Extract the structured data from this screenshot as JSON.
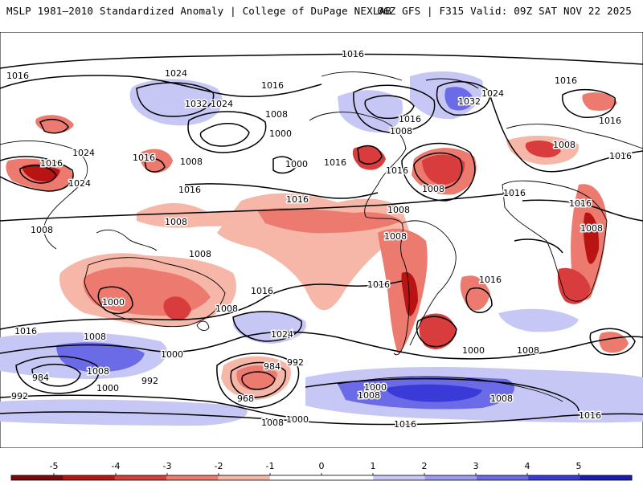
{
  "header": {
    "title_left": "MSLP 1981–2010 Standardized Anomaly | College of DuPage NEXLAB",
    "title_right": "06Z GFS | F315 Valid: 09Z SAT NOV 22 2025"
  },
  "colorbar": {
    "ticks": [
      "-5",
      "-4",
      "-3",
      "-2",
      "-1",
      "0",
      "1",
      "2",
      "3",
      "4",
      "5"
    ],
    "colors": [
      "#7a0a0a",
      "#b81414",
      "#d83c3c",
      "#ec7a6e",
      "#f6b6a8",
      "#ffffff",
      "#ffffff",
      "#c7c7f5",
      "#9a9af0",
      "#6b6be8",
      "#3a3ad8",
      "#1a1ab8"
    ]
  },
  "map": {
    "contour_labels": [
      {
        "text": "1016"
      },
      {
        "text": "1024"
      },
      {
        "text": "1032"
      },
      {
        "text": "1024"
      },
      {
        "text": "1016"
      },
      {
        "text": "1008"
      },
      {
        "text": "1000"
      },
      {
        "text": "1016"
      },
      {
        "text": "1024"
      },
      {
        "text": "1016"
      },
      {
        "text": "1024"
      },
      {
        "text": "1016"
      },
      {
        "text": "1016"
      },
      {
        "text": "1032"
      },
      {
        "text": "1024"
      },
      {
        "text": "1008"
      },
      {
        "text": "1016"
      },
      {
        "text": "1016"
      },
      {
        "text": "1008"
      },
      {
        "text": "1016"
      },
      {
        "text": "1016"
      },
      {
        "text": "1008"
      },
      {
        "text": "1008"
      },
      {
        "text": "1016"
      },
      {
        "text": "1008"
      },
      {
        "text": "1008"
      },
      {
        "text": "1016"
      },
      {
        "text": "1000"
      },
      {
        "text": "1016"
      },
      {
        "text": "1008"
      },
      {
        "text": "1016"
      },
      {
        "text": "1016"
      },
      {
        "text": "1008"
      },
      {
        "text": "1016"
      },
      {
        "text": "1016"
      },
      {
        "text": "1008"
      },
      {
        "text": "1008"
      },
      {
        "text": "1000"
      },
      {
        "text": "1024"
      },
      {
        "text": "1008"
      },
      {
        "text": "1008"
      },
      {
        "text": "1000"
      },
      {
        "text": "1008"
      },
      {
        "text": "1000"
      },
      {
        "text": "992"
      },
      {
        "text": "984"
      },
      {
        "text": "992"
      },
      {
        "text": "984"
      },
      {
        "text": "992"
      },
      {
        "text": "1000"
      },
      {
        "text": "1008"
      },
      {
        "text": "968"
      },
      {
        "text": "1000"
      },
      {
        "text": "1008"
      },
      {
        "text": "1016"
      },
      {
        "text": "1008"
      },
      {
        "text": "1000"
      },
      {
        "text": "1016"
      },
      {
        "text": "1016"
      },
      {
        "text": "1016"
      },
      {
        "text": "1008"
      }
    ]
  },
  "colors": {
    "neg1": "#f6b6a8",
    "neg2": "#ec7a6e",
    "neg3": "#d83c3c",
    "neg4": "#b81414",
    "pos1": "#c7c7f5",
    "pos2": "#9a9af0",
    "pos3": "#6b6be8",
    "pos4": "#3a3ad8"
  }
}
